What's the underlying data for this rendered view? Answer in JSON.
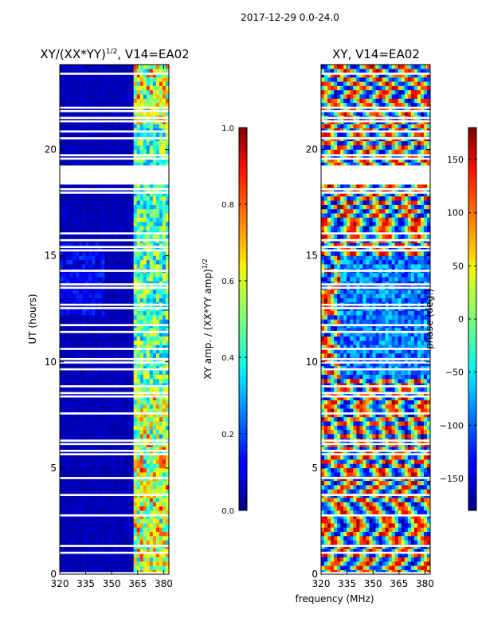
{
  "figure": {
    "suptitle": "2017-12-29 0.0-24.0",
    "shared_xlabel": "frequency (MHz)"
  },
  "chart_data": [
    {
      "type": "heatmap",
      "title_main": "XY/(XX*YY)",
      "title_exp": "1/2",
      "title_suffix": ", V14=EA02",
      "xlabel": "frequency (MHz)",
      "ylabel": "UT (hours)",
      "xlim": [
        320,
        383
      ],
      "ylim": [
        0,
        24
      ],
      "xticks": [
        320,
        335,
        350,
        365,
        380
      ],
      "yticks": [
        0,
        5,
        10,
        15,
        20
      ],
      "colormap": "jet",
      "colorbar": {
        "label_main": "XY amp. / (XX*YY amp)",
        "label_exp": "1/2",
        "range": [
          0.0,
          1.0
        ],
        "ticks": [
          "0.0",
          "0.2",
          "0.4",
          "0.6",
          "0.8",
          "1.0"
        ]
      }
    },
    {
      "type": "heatmap",
      "title": "XY, V14=EA02",
      "xlabel": "frequency (MHz)",
      "ylabel": "",
      "xlim": [
        320,
        383
      ],
      "ylim": [
        0,
        24
      ],
      "xticks": [
        320,
        335,
        350,
        365,
        380
      ],
      "yticks": [
        0,
        5,
        10,
        15,
        20
      ],
      "colormap": "jet",
      "colorbar": {
        "label": "phase (deg.)",
        "range": [
          -180,
          180
        ],
        "ticks": [
          "150",
          "100",
          "50",
          "0",
          "−50",
          "−100",
          "−150"
        ]
      }
    }
  ]
}
